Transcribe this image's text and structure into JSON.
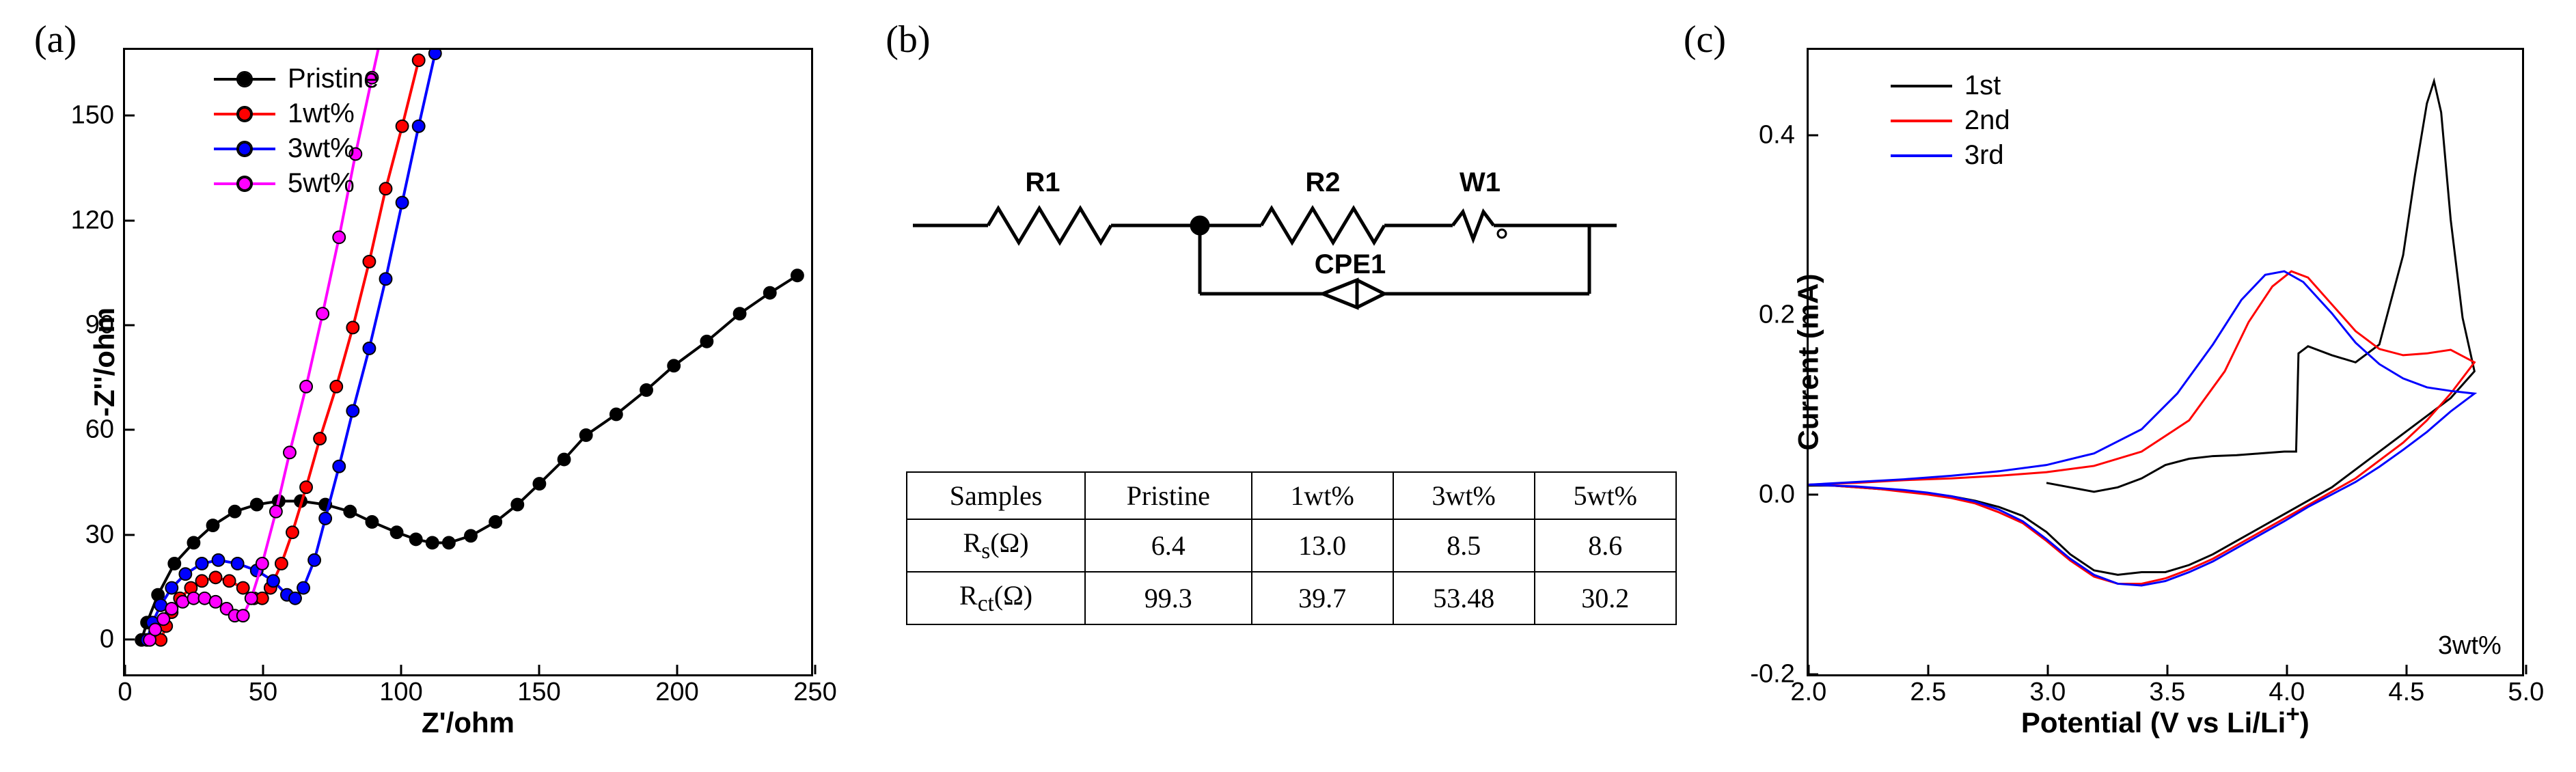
{
  "panelA": {
    "label": "(a)",
    "xlabel": "Z'/ohm",
    "ylabel": "-Z''/ohm",
    "xlim": [
      0,
      250
    ],
    "ylim": [
      -10,
      170
    ],
    "xticks": [
      0,
      50,
      100,
      150,
      200,
      250
    ],
    "yticks": [
      0,
      30,
      60,
      90,
      120,
      150
    ],
    "background_color": "#ffffff",
    "border_color": "#000000",
    "tick_fontsize": 38,
    "label_fontsize": 42,
    "line_width": 4,
    "marker_size": 18,
    "marker_shape": "circle",
    "marker_border": "#000000",
    "legend_pos": "top-left-inset",
    "series": [
      {
        "name": "Pristine",
        "color": "#000000",
        "points": [
          [
            6,
            0
          ],
          [
            8,
            5
          ],
          [
            12,
            13
          ],
          [
            18,
            22
          ],
          [
            25,
            28
          ],
          [
            32,
            33
          ],
          [
            40,
            37
          ],
          [
            48,
            39
          ],
          [
            56,
            40
          ],
          [
            64,
            40
          ],
          [
            73,
            39
          ],
          [
            82,
            37
          ],
          [
            90,
            34
          ],
          [
            99,
            31
          ],
          [
            106,
            29
          ],
          [
            112,
            28
          ],
          [
            118,
            28
          ],
          [
            126,
            30
          ],
          [
            135,
            34
          ],
          [
            143,
            39
          ],
          [
            151,
            45
          ],
          [
            160,
            52
          ],
          [
            168,
            59
          ],
          [
            179,
            65
          ],
          [
            190,
            72
          ],
          [
            200,
            79
          ],
          [
            212,
            86
          ],
          [
            224,
            94
          ],
          [
            235,
            100
          ],
          [
            245,
            105
          ]
        ]
      },
      {
        "name": "1wt%",
        "color": "#ff0000",
        "points": [
          [
            13,
            0
          ],
          [
            15,
            4
          ],
          [
            17,
            8
          ],
          [
            20,
            12
          ],
          [
            24,
            15
          ],
          [
            28,
            17
          ],
          [
            33,
            18
          ],
          [
            38,
            17
          ],
          [
            43,
            15
          ],
          [
            47,
            12
          ],
          [
            50,
            12
          ],
          [
            53,
            15
          ],
          [
            57,
            22
          ],
          [
            61,
            31
          ],
          [
            66,
            44
          ],
          [
            71,
            58
          ],
          [
            77,
            73
          ],
          [
            83,
            90
          ],
          [
            89,
            109
          ],
          [
            95,
            130
          ],
          [
            101,
            148
          ],
          [
            107,
            167
          ]
        ]
      },
      {
        "name": "3wt%",
        "color": "#0000ff",
        "points": [
          [
            8,
            0
          ],
          [
            10,
            5
          ],
          [
            13,
            10
          ],
          [
            17,
            15
          ],
          [
            22,
            19
          ],
          [
            28,
            22
          ],
          [
            34,
            23
          ],
          [
            41,
            22
          ],
          [
            48,
            20
          ],
          [
            54,
            17
          ],
          [
            59,
            13
          ],
          [
            62,
            12
          ],
          [
            65,
            15
          ],
          [
            69,
            23
          ],
          [
            73,
            35
          ],
          [
            78,
            50
          ],
          [
            83,
            66
          ],
          [
            89,
            84
          ],
          [
            95,
            104
          ],
          [
            101,
            126
          ],
          [
            107,
            148
          ],
          [
            113,
            169
          ]
        ]
      },
      {
        "name": "5wt%",
        "color": "#ff00ff",
        "points": [
          [
            9,
            0
          ],
          [
            11,
            3
          ],
          [
            14,
            6
          ],
          [
            17,
            9
          ],
          [
            21,
            11
          ],
          [
            25,
            12
          ],
          [
            29,
            12
          ],
          [
            33,
            11
          ],
          [
            37,
            9
          ],
          [
            40,
            7
          ],
          [
            43,
            7
          ],
          [
            46,
            12
          ],
          [
            50,
            22
          ],
          [
            55,
            37
          ],
          [
            60,
            54
          ],
          [
            66,
            73
          ],
          [
            72,
            94
          ],
          [
            78,
            116
          ],
          [
            84,
            140
          ],
          [
            90,
            162
          ],
          [
            95,
            180
          ]
        ]
      }
    ]
  },
  "panelB": {
    "label": "(b)",
    "circuit": {
      "elements": [
        "R1",
        "R2",
        "W1",
        "CPE1"
      ],
      "R1_label": "R1",
      "R2_label": "R2",
      "W1_label": "W1",
      "CPE1_label": "CPE1",
      "node_dot": true,
      "line_width": 4,
      "color": "#000000",
      "label_fontsize": 40
    },
    "table": {
      "columns": [
        "Samples",
        "Pristine",
        "1wt%",
        "3wt%",
        "5wt%"
      ],
      "rows": [
        [
          "Rs(Ω)",
          "6.4",
          "13.0",
          "8.5",
          "8.6"
        ],
        [
          "Rct(Ω)",
          "99.3",
          "39.7",
          "53.48",
          "30.2"
        ]
      ],
      "fontsize": 40,
      "border_color": "#000000"
    }
  },
  "panelC": {
    "label": "(c)",
    "xlabel": "Potential (V vs Li/Li+)",
    "ylabel": "Current (mA)",
    "xlim": [
      2.0,
      5.0
    ],
    "ylim": [
      -0.2,
      0.5
    ],
    "xticks": [
      2.0,
      2.5,
      3.0,
      3.5,
      4.0,
      4.5,
      5.0
    ],
    "yticks": [
      -0.2,
      0.0,
      0.2,
      0.4
    ],
    "note": "3wt%",
    "background_color": "#ffffff",
    "border_color": "#000000",
    "tick_fontsize": 38,
    "label_fontsize": 42,
    "line_width": 3,
    "legend_pos": "top-left-inset",
    "series": [
      {
        "name": "1st",
        "color": "#000000",
        "points_up": [
          [
            3.0,
            0.015
          ],
          [
            3.1,
            0.01
          ],
          [
            3.2,
            0.005
          ],
          [
            3.3,
            0.01
          ],
          [
            3.4,
            0.02
          ],
          [
            3.5,
            0.035
          ],
          [
            3.6,
            0.042
          ],
          [
            3.7,
            0.045
          ],
          [
            3.8,
            0.046
          ],
          [
            3.9,
            0.048
          ],
          [
            4.0,
            0.05
          ],
          [
            4.05,
            0.05
          ],
          [
            4.06,
            0.16
          ],
          [
            4.1,
            0.168
          ],
          [
            4.2,
            0.158
          ],
          [
            4.3,
            0.15
          ],
          [
            4.4,
            0.17
          ],
          [
            4.5,
            0.27
          ],
          [
            4.55,
            0.36
          ],
          [
            4.6,
            0.44
          ],
          [
            4.63,
            0.465
          ],
          [
            4.66,
            0.43
          ],
          [
            4.7,
            0.31
          ],
          [
            4.75,
            0.2
          ],
          [
            4.8,
            0.14
          ]
        ],
        "points_down": [
          [
            4.8,
            0.14
          ],
          [
            4.7,
            0.11
          ],
          [
            4.6,
            0.09
          ],
          [
            4.5,
            0.07
          ],
          [
            4.4,
            0.05
          ],
          [
            4.3,
            0.03
          ],
          [
            4.2,
            0.01
          ],
          [
            4.1,
            -0.005
          ],
          [
            4.0,
            -0.02
          ],
          [
            3.9,
            -0.035
          ],
          [
            3.8,
            -0.05
          ],
          [
            3.7,
            -0.065
          ],
          [
            3.6,
            -0.077
          ],
          [
            3.5,
            -0.085
          ],
          [
            3.4,
            -0.085
          ],
          [
            3.3,
            -0.088
          ],
          [
            3.2,
            -0.083
          ],
          [
            3.1,
            -0.065
          ],
          [
            3.0,
            -0.04
          ],
          [
            2.9,
            -0.022
          ],
          [
            2.8,
            -0.012
          ],
          [
            2.7,
            -0.005
          ],
          [
            2.6,
            0.0
          ],
          [
            2.5,
            0.003
          ],
          [
            2.4,
            0.006
          ],
          [
            2.3,
            0.008
          ],
          [
            2.2,
            0.01
          ],
          [
            2.1,
            0.012
          ],
          [
            2.0,
            0.012
          ]
        ]
      },
      {
        "name": "2nd",
        "color": "#ff0000",
        "points_up": [
          [
            2.0,
            0.013
          ],
          [
            2.2,
            0.015
          ],
          [
            2.4,
            0.018
          ],
          [
            2.6,
            0.02
          ],
          [
            2.8,
            0.023
          ],
          [
            3.0,
            0.027
          ],
          [
            3.2,
            0.034
          ],
          [
            3.4,
            0.05
          ],
          [
            3.6,
            0.085
          ],
          [
            3.75,
            0.14
          ],
          [
            3.85,
            0.195
          ],
          [
            3.95,
            0.235
          ],
          [
            4.03,
            0.252
          ],
          [
            4.1,
            0.245
          ],
          [
            4.2,
            0.215
          ],
          [
            4.3,
            0.185
          ],
          [
            4.4,
            0.165
          ],
          [
            4.5,
            0.158
          ],
          [
            4.6,
            0.16
          ],
          [
            4.7,
            0.164
          ],
          [
            4.8,
            0.15
          ]
        ],
        "points_down": [
          [
            4.8,
            0.15
          ],
          [
            4.7,
            0.115
          ],
          [
            4.6,
            0.085
          ],
          [
            4.5,
            0.06
          ],
          [
            4.4,
            0.04
          ],
          [
            4.3,
            0.02
          ],
          [
            4.2,
            0.005
          ],
          [
            4.1,
            -0.01
          ],
          [
            4.0,
            -0.025
          ],
          [
            3.9,
            -0.04
          ],
          [
            3.8,
            -0.055
          ],
          [
            3.7,
            -0.07
          ],
          [
            3.6,
            -0.082
          ],
          [
            3.5,
            -0.092
          ],
          [
            3.4,
            -0.098
          ],
          [
            3.3,
            -0.098
          ],
          [
            3.2,
            -0.09
          ],
          [
            3.1,
            -0.072
          ],
          [
            3.0,
            -0.05
          ],
          [
            2.9,
            -0.03
          ],
          [
            2.8,
            -0.018
          ],
          [
            2.7,
            -0.008
          ],
          [
            2.6,
            -0.002
          ],
          [
            2.5,
            0.002
          ],
          [
            2.4,
            0.005
          ],
          [
            2.3,
            0.008
          ],
          [
            2.2,
            0.01
          ],
          [
            2.1,
            0.012
          ],
          [
            2.0,
            0.013
          ]
        ]
      },
      {
        "name": "3rd",
        "color": "#0000ff",
        "points_up": [
          [
            2.0,
            0.013
          ],
          [
            2.2,
            0.016
          ],
          [
            2.4,
            0.019
          ],
          [
            2.6,
            0.023
          ],
          [
            2.8,
            0.028
          ],
          [
            3.0,
            0.035
          ],
          [
            3.2,
            0.048
          ],
          [
            3.4,
            0.075
          ],
          [
            3.55,
            0.115
          ],
          [
            3.7,
            0.17
          ],
          [
            3.82,
            0.22
          ],
          [
            3.92,
            0.248
          ],
          [
            4.0,
            0.252
          ],
          [
            4.08,
            0.24
          ],
          [
            4.2,
            0.205
          ],
          [
            4.3,
            0.172
          ],
          [
            4.4,
            0.148
          ],
          [
            4.5,
            0.132
          ],
          [
            4.6,
            0.122
          ],
          [
            4.7,
            0.118
          ],
          [
            4.8,
            0.115
          ]
        ],
        "points_down": [
          [
            4.8,
            0.115
          ],
          [
            4.7,
            0.095
          ],
          [
            4.6,
            0.072
          ],
          [
            4.5,
            0.052
          ],
          [
            4.4,
            0.033
          ],
          [
            4.3,
            0.016
          ],
          [
            4.2,
            0.002
          ],
          [
            4.1,
            -0.012
          ],
          [
            4.0,
            -0.028
          ],
          [
            3.9,
            -0.043
          ],
          [
            3.8,
            -0.058
          ],
          [
            3.7,
            -0.073
          ],
          [
            3.6,
            -0.085
          ],
          [
            3.5,
            -0.095
          ],
          [
            3.4,
            -0.1
          ],
          [
            3.3,
            -0.098
          ],
          [
            3.2,
            -0.088
          ],
          [
            3.1,
            -0.07
          ],
          [
            3.0,
            -0.048
          ],
          [
            2.9,
            -0.028
          ],
          [
            2.8,
            -0.015
          ],
          [
            2.7,
            -0.006
          ],
          [
            2.6,
            0.0
          ],
          [
            2.5,
            0.004
          ],
          [
            2.4,
            0.007
          ],
          [
            2.3,
            0.009
          ],
          [
            2.2,
            0.011
          ],
          [
            2.1,
            0.012
          ],
          [
            2.0,
            0.013
          ]
        ]
      }
    ]
  }
}
